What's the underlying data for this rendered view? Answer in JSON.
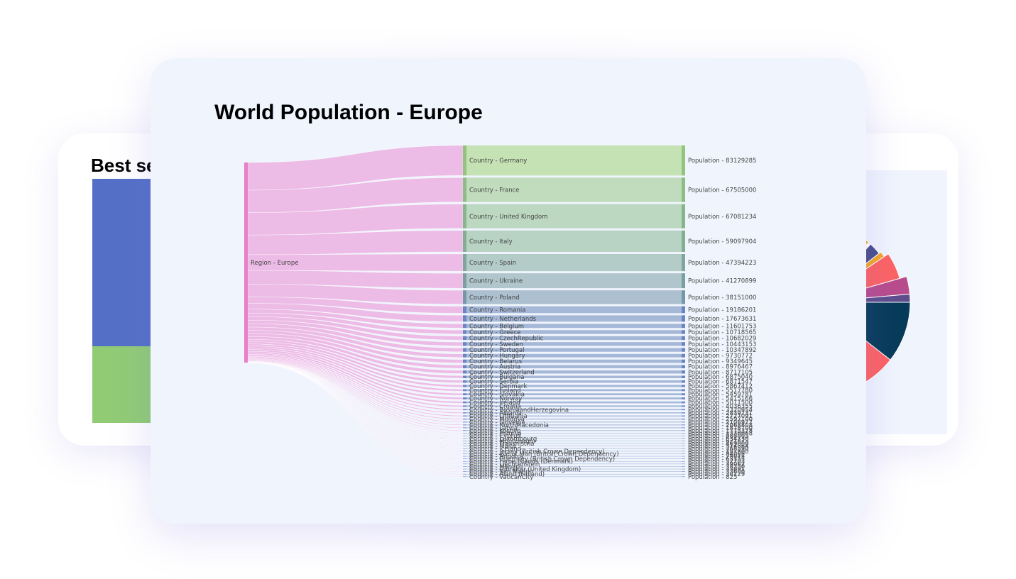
{
  "back_left_card": {
    "title": "Best se",
    "bar_colors": [
      "#5470c6",
      "#91cc75"
    ]
  },
  "back_right_card": {
    "donut_colors": [
      "#b84c8c",
      "#f5a623",
      "#ffffff",
      "#4a4e8c",
      "#fd6363",
      "#b84c8c",
      "#5e4e8c",
      "#073b59",
      "#fd6363"
    ]
  },
  "main_card": {
    "title": "World Population - Europe"
  },
  "chart_data": {
    "type": "sankey",
    "title": "World Population - Europe",
    "source": {
      "label": "Region - Europe"
    },
    "links": [
      {
        "country": "Germany",
        "value": 83129285,
        "country_label": "Country - Germany",
        "population_label": "Population - 83129285"
      },
      {
        "country": "France",
        "value": 67505000,
        "country_label": "Country - France",
        "population_label": "Population - 67505000"
      },
      {
        "country": "United Kingdom",
        "value": 67081234,
        "country_label": "Country - United Kingdom",
        "population_label": "Population - 67081234"
      },
      {
        "country": "Italy",
        "value": 59097904,
        "country_label": "Country - Italy",
        "population_label": "Population - 59097904"
      },
      {
        "country": "Spain",
        "value": 47394223,
        "country_label": "Country - Spain",
        "population_label": "Population - 47394223"
      },
      {
        "country": "Ukraine",
        "value": 41270899,
        "country_label": "Country - Ukraine",
        "population_label": "Population - 41270899"
      },
      {
        "country": "Poland",
        "value": 38151000,
        "country_label": "Country - Poland",
        "population_label": "Population - 38151000"
      },
      {
        "country": "Romania",
        "value": 19186201,
        "country_label": "Country - Romania",
        "population_label": "Population - 19186201"
      },
      {
        "country": "Netherlands",
        "value": 17673631,
        "country_label": "Country - Netherlands",
        "population_label": "Population - 17673631"
      },
      {
        "country": "Belgium",
        "value": 11601753,
        "country_label": "Country - Belgium",
        "population_label": "Population - 11601753"
      },
      {
        "country": "Greece",
        "value": 10718565,
        "country_label": "Country - Greece",
        "population_label": "Population - 10718565"
      },
      {
        "country": "CzechRepublic",
        "value": 10682029,
        "country_label": "Country - CzechRepublic",
        "population_label": "Population - 10682029"
      },
      {
        "country": "Sweden",
        "value": 10443153,
        "country_label": "Country - Sweden",
        "population_label": "Population - 10443153"
      },
      {
        "country": "Portugal",
        "value": 10347892,
        "country_label": "Country - Portugal",
        "population_label": "Population - 10347892"
      },
      {
        "country": "Hungary",
        "value": 9730772,
        "country_label": "Country - Hungary",
        "population_label": "Population - 9730772"
      },
      {
        "country": "Belarus",
        "value": 9349645,
        "country_label": "Country - Belarus",
        "population_label": "Population - 9349645"
      },
      {
        "country": "Austria",
        "value": 8976467,
        "country_label": "Country - Austria",
        "population_label": "Population - 8976467"
      },
      {
        "country": "Switzerland",
        "value": 8717105,
        "country_label": "Country - Switzerland",
        "population_label": "Population - 8717105"
      },
      {
        "country": "Bulgaria",
        "value": 6875040,
        "country_label": "Country - Bulgaria",
        "population_label": "Population - 6875040"
      },
      {
        "country": "Serbia",
        "value": 6871547,
        "country_label": "Country - Serbia",
        "population_label": "Population - 6871547"
      },
      {
        "country": "Denmark",
        "value": 5867412,
        "country_label": "Country - Denmark",
        "population_label": "Population - 5867412"
      },
      {
        "country": "Finland",
        "value": 5517780,
        "country_label": "Country - Finland",
        "population_label": "Population - 5517780"
      },
      {
        "country": "Slovakia",
        "value": 5459781,
        "country_label": "Country - Slovakia",
        "population_label": "Population - 5459781"
      },
      {
        "country": "Norway",
        "value": 5415166,
        "country_label": "Country - Norway",
        "population_label": "Population - 5415166"
      },
      {
        "country": "Ireland",
        "value": 5011500,
        "country_label": "Country - Ireland",
        "population_label": "Population - 5011500"
      },
      {
        "country": "Croatia",
        "value": 4036355,
        "country_label": "Country - Croatia",
        "population_label": "Population - 4036355"
      },
      {
        "country": "BosniaandHerzegovina",
        "value": 3320954,
        "country_label": "Country - BosniaandHerzegovina",
        "population_label": "Population - 3320954"
      },
      {
        "country": "Albania",
        "value": 2839731,
        "country_label": "Country - Albania",
        "population_label": "Population - 2839731"
      },
      {
        "country": "Lithuania",
        "value": 2727091,
        "country_label": "Country - Lithuania",
        "population_label": "Population - 2727091"
      },
      {
        "country": "Moldova",
        "value": 2597100,
        "country_label": "Country - Moldova",
        "population_label": "Population - 2597100"
      },
      {
        "country": "Slovenia",
        "value": 2108977,
        "country_label": "Country - Slovenia",
        "population_label": "Population - 2108977"
      },
      {
        "country": "NorthMacedonia",
        "value": 2068808,
        "country_label": "Country - NorthMacedonia",
        "population_label": "Population - 2068808"
      },
      {
        "country": "Latvia",
        "value": 1878700,
        "country_label": "Country - Latvia",
        "population_label": "Population - 1878700"
      },
      {
        "country": "Kosovo",
        "value": 1775378,
        "country_label": "Country - Kosovo",
        "population_label": "Population - 1775378"
      },
      {
        "country": "Estonia",
        "value": 1330068,
        "country_label": "Country - Estonia",
        "population_label": "Population - 1330068"
      },
      {
        "country": "Cyprus",
        "value": 888005,
        "country_label": "Country - Cyprus",
        "population_label": "Population - 888005"
      },
      {
        "country": "Luxembourg",
        "value": 634730,
        "country_label": "Country - Luxembourg",
        "population_label": "Population - 634730"
      },
      {
        "country": "Montenegro",
        "value": 621873,
        "country_label": "Country - Montenegro",
        "population_label": "Population - 621873"
      },
      {
        "country": "Transnistria",
        "value": 469000,
        "country_label": "Country - Transnistria",
        "population_label": "Population - 469000"
      },
      {
        "country": "Malta",
        "value": 514564,
        "country_label": "Country - Malta",
        "population_label": "Population - 514564"
      },
      {
        "country": "Iceland",
        "value": 368590,
        "country_label": "Country - Iceland",
        "population_label": "Population - 368590"
      },
      {
        "country": "Jersey (British Crown Dependency)",
        "value": 107800,
        "country_label": "Country - Jersey (British Crown Dependency)",
        "population_label": "Population - 107800"
      },
      {
        "country": "Isle of Man (British Crown Dependency)",
        "value": 84069,
        "country_label": "Country - Isle of Man (British Crown Dependency)",
        "population_label": "Population - 84069"
      },
      {
        "country": "Andorra",
        "value": 78015,
        "country_label": "Country - Andorra",
        "population_label": "Population - 78015"
      },
      {
        "country": "Guernsey (British Crown Dependency)",
        "value": 63155,
        "country_label": "Country - Guernsey (British Crown Dependency)",
        "population_label": "Population - 63155"
      },
      {
        "country": "Faroe Islands (Denmark)",
        "value": 52703,
        "country_label": "Country - Faroe Islands (Denmark)",
        "population_label": "Population - 52703"
      },
      {
        "country": "Liechtenstein",
        "value": 39062,
        "country_label": "Country - Liechtenstein",
        "population_label": "Population - 39062"
      },
      {
        "country": "Monaco",
        "value": 38350,
        "country_label": "Country - Monaco",
        "population_label": "Population - 38350"
      },
      {
        "country": "Gibraltar (United Kingdom)",
        "value": 33691,
        "country_label": "Country - Gibraltar (United Kingdom)",
        "population_label": "Population - 33691"
      },
      {
        "country": "San Marino",
        "value": 33600,
        "country_label": "Country - San Marino",
        "population_label": "Population - 33600"
      },
      {
        "country": "Aland (Finland)",
        "value": 30129,
        "country_label": "Country - Aland (Finland)",
        "population_label": "Population - 30129"
      },
      {
        "country": "VaticanCity",
        "value": 825,
        "country_label": "Country - VaticanCity",
        "population_label": "Population - 825"
      }
    ],
    "colors": {
      "source": "#e87fc8",
      "link": "#ebb5e4",
      "large_first": "#c7e2b8",
      "large_last": "#b0c4ca",
      "small": "#a6b8d8"
    }
  }
}
